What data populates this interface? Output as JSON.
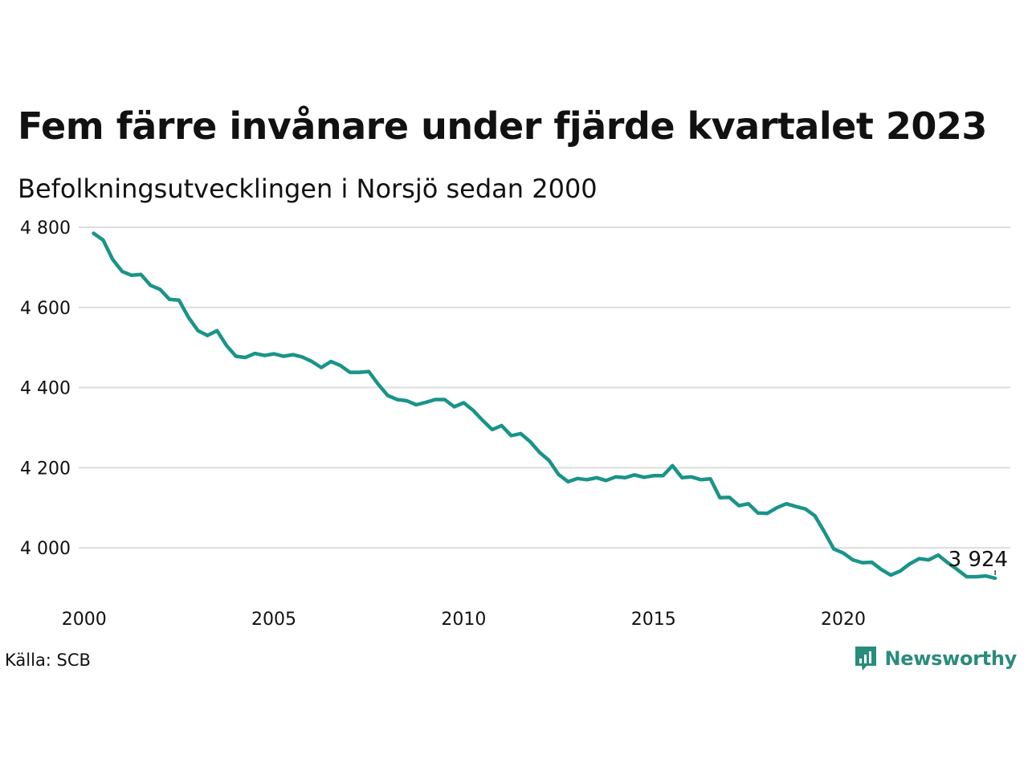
{
  "title": "Fem färre invånare under fjärde kvartalet 2023",
  "subtitle": "Befolkningsutvecklingen i Norsjö sedan 2000",
  "source": "Källa: SCB",
  "brand": {
    "name": "Newsworthy",
    "color": "#2a8c7c"
  },
  "colors": {
    "line": "#1a9488",
    "grid": "#dddddd",
    "text": "#111111"
  },
  "chart_data": {
    "type": "line",
    "title": "Fem färre invånare under fjärde kvartalet 2023",
    "subtitle": "Befolkningsutvecklingen i Norsjö sedan 2000",
    "xlabel": "",
    "ylabel": "",
    "x_ticks": [
      "2000",
      "2005",
      "2010",
      "2015",
      "2020"
    ],
    "y_ticks": [
      "4 000",
      "4 200",
      "4 400",
      "4 600",
      "4 800"
    ],
    "y_tick_values": [
      4000,
      4200,
      4400,
      4600,
      4800
    ],
    "xlim": [
      1999.9,
      2024.4
    ],
    "ylim": [
      3880,
      4830
    ],
    "grid": true,
    "legend": "none",
    "end_label": "3 924",
    "series": [
      {
        "x_start": 2000.25,
        "x_step": 0.25,
        "values": [
          4785,
          4768,
          4720,
          4690,
          4680,
          4682,
          4655,
          4645,
          4620,
          4618,
          4575,
          4542,
          4530,
          4542,
          4505,
          4478,
          4475,
          4485,
          4480,
          4484,
          4478,
          4482,
          4476,
          4465,
          4450,
          4465,
          4455,
          4438,
          4438,
          4440,
          4408,
          4380,
          4370,
          4367,
          4357,
          4363,
          4370,
          4370,
          4352,
          4362,
          4343,
          4318,
          4295,
          4305,
          4280,
          4285,
          4265,
          4238,
          4218,
          4183,
          4165,
          4173,
          4170,
          4175,
          4168,
          4177,
          4175,
          4182,
          4176,
          4180,
          4180,
          4205,
          4175,
          4177,
          4170,
          4172,
          4125,
          4126,
          4105,
          4110,
          4087,
          4086,
          4100,
          4110,
          4103,
          4097,
          4080,
          4040,
          3997,
          3987,
          3970,
          3963,
          3964,
          3946,
          3932,
          3942,
          3960,
          3973,
          3970,
          3982,
          3963,
          3946,
          3928,
          3928,
          3930,
          3924
        ]
      }
    ]
  }
}
